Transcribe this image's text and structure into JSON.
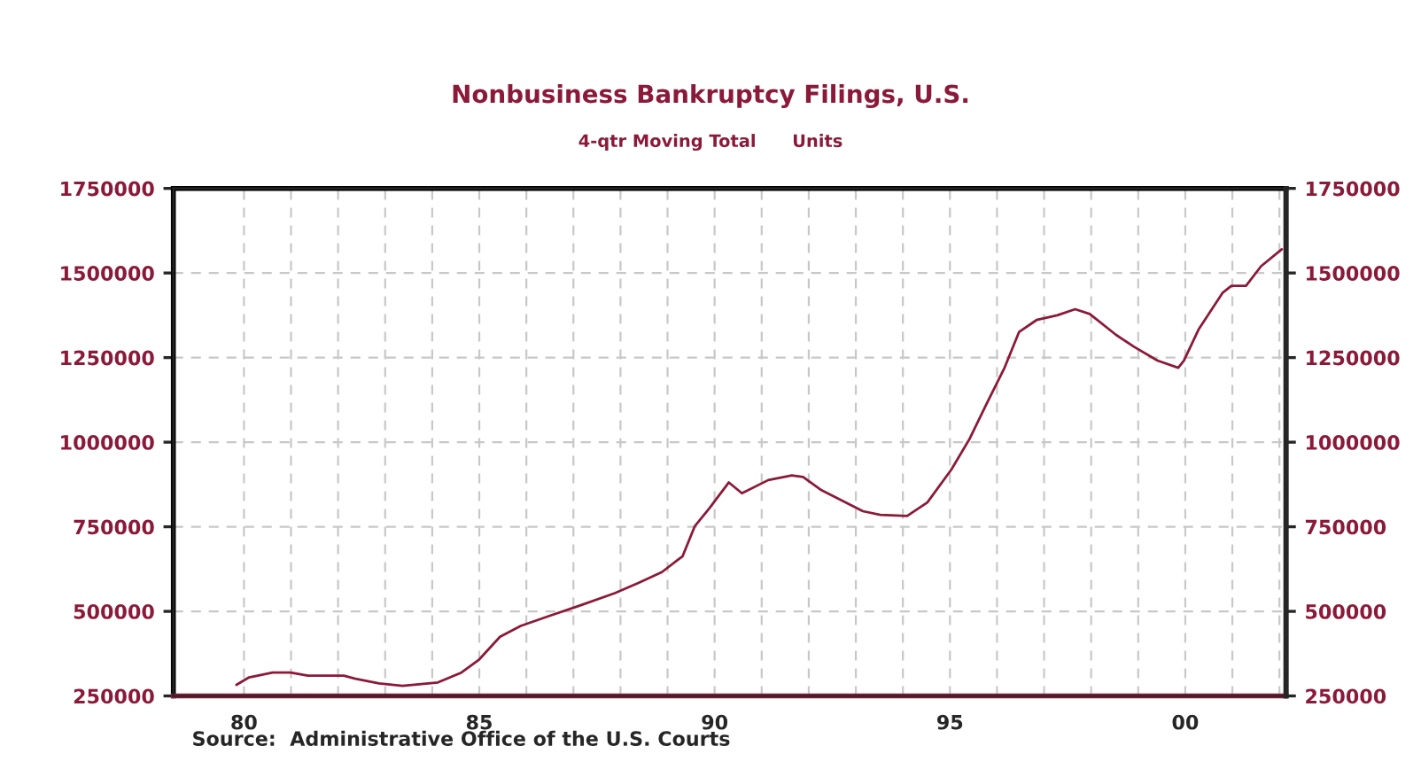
{
  "chart_data": {
    "type": "line",
    "title": "Nonbusiness Bankruptcy Filings, U.S.",
    "subtitle": "4-qtr Moving Total      Units",
    "annotations": [
      "Source:  Administrative Office of the U.S. Courts"
    ],
    "x": [
      1979.84,
      1980.11,
      1980.61,
      1980.99,
      1981.36,
      1982.12,
      1982.37,
      1982.87,
      1983.37,
      1984.12,
      1984.62,
      1985.0,
      1985.44,
      1985.88,
      1986.5,
      1987.13,
      1987.88,
      1988.38,
      1988.88,
      1989.32,
      1989.58,
      1989.89,
      1990.3,
      1990.58,
      1991.14,
      1991.64,
      1991.88,
      1992.27,
      1993.15,
      1993.52,
      1994.09,
      1994.52,
      1995.03,
      1995.41,
      1995.78,
      1996.16,
      1996.47,
      1996.84,
      1997.28,
      1997.66,
      1997.97,
      1998.53,
      1998.91,
      1999.41,
      1999.85,
      1999.97,
      2000.29,
      2000.79,
      2000.98,
      2001.29,
      2001.61,
      2002.05
    ],
    "series": [
      {
        "color": "#8b1a3a",
        "values": [
          283000,
          305000,
          319000,
          319000,
          310000,
          310000,
          301000,
          287000,
          280000,
          290000,
          319000,
          358000,
          425000,
          457000,
          487000,
          517000,
          554000,
          584000,
          616000,
          663000,
          752000,
          805000,
          881000,
          849000,
          888000,
          902000,
          897000,
          858000,
          796000,
          785000,
          782000,
          822000,
          919000,
          1008000,
          1114000,
          1220000,
          1326000,
          1361000,
          1375000,
          1393000,
          1379000,
          1317000,
          1282000,
          1241000,
          1220000,
          1241000,
          1335000,
          1441000,
          1462000,
          1462000,
          1520000,
          1570000
        ]
      }
    ],
    "xlim": [
      1978.5,
      2002.14
    ],
    "xticks": [
      {
        "value": 1980,
        "label": "80"
      },
      {
        "value": 1981,
        "label": null
      },
      {
        "value": 1982,
        "label": null
      },
      {
        "value": 1983,
        "label": null
      },
      {
        "value": 1984,
        "label": null
      },
      {
        "value": 1985,
        "label": "85"
      },
      {
        "value": 1986,
        "label": null
      },
      {
        "value": 1987,
        "label": null
      },
      {
        "value": 1988,
        "label": null
      },
      {
        "value": 1989,
        "label": null
      },
      {
        "value": 1990,
        "label": "90"
      },
      {
        "value": 1991,
        "label": null
      },
      {
        "value": 1992,
        "label": null
      },
      {
        "value": 1993,
        "label": null
      },
      {
        "value": 1994,
        "label": null
      },
      {
        "value": 1995,
        "label": "95"
      },
      {
        "value": 1996,
        "label": null
      },
      {
        "value": 1997,
        "label": null
      },
      {
        "value": 1998,
        "label": null
      },
      {
        "value": 1999,
        "label": null
      },
      {
        "value": 2000,
        "label": "00"
      },
      {
        "value": 2001,
        "label": null
      },
      {
        "value": 2002,
        "label": null
      }
    ],
    "ylim": [
      250000,
      1750000
    ],
    "yticks": [
      250000,
      500000,
      750000,
      1000000,
      1250000,
      1500000,
      1750000
    ],
    "y2lim": [
      250000,
      1750000
    ],
    "y2ticks": [
      250000,
      500000,
      750000,
      1000000,
      1250000,
      1500000,
      1750000
    ],
    "grid": true,
    "line_style": "solid",
    "marker": "none"
  }
}
